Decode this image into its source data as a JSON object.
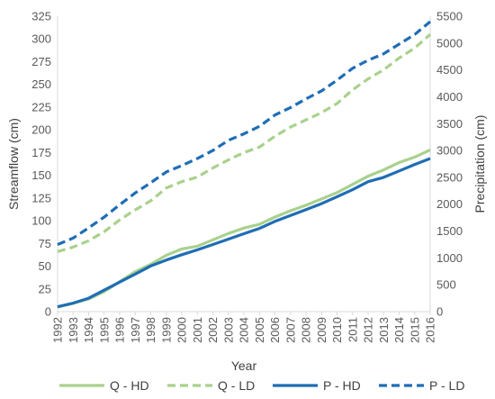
{
  "chart_data": {
    "type": "line",
    "title": "",
    "xlabel": "Year",
    "ylabel": "Streamflow (cm)",
    "y2label": "Precipitation (cm)",
    "ylim": [
      0,
      325
    ],
    "y2lim": [
      0,
      5500
    ],
    "yticks": [
      "0",
      "25",
      "50",
      "75",
      "100",
      "125",
      "150",
      "175",
      "200",
      "225",
      "250",
      "275",
      "300",
      "325"
    ],
    "y2ticks": [
      "0",
      "500",
      "1000",
      "1500",
      "2000",
      "2500",
      "3000",
      "3500",
      "4000",
      "4500",
      "5000",
      "5500"
    ],
    "x": [
      "1992",
      "1993",
      "1994",
      "1995",
      "1996",
      "1997",
      "1998",
      "1999",
      "2000",
      "2001",
      "2002",
      "2003",
      "2004",
      "2005",
      "2006",
      "2007",
      "2008",
      "2009",
      "2010",
      "2011",
      "2012",
      "2013",
      "2014",
      "2015",
      "2016"
    ],
    "grid": false,
    "legend_position": "bottom",
    "series": [
      {
        "name": "Q - HD",
        "axis": "left",
        "color": "#a9d18e",
        "dash": false,
        "values": [
          5,
          9,
          14,
          22,
          33,
          44,
          52,
          62,
          69,
          72,
          79,
          86,
          92,
          96,
          104,
          111,
          117,
          124,
          131,
          140,
          149,
          156,
          164,
          170,
          178
        ]
      },
      {
        "name": "Q - LD",
        "axis": "left",
        "color": "#a9d18e",
        "dash": true,
        "values": [
          66,
          71,
          78,
          88,
          101,
          112,
          122,
          136,
          143,
          148,
          158,
          167,
          175,
          181,
          193,
          203,
          211,
          219,
          229,
          244,
          256,
          266,
          279,
          290,
          305
        ]
      },
      {
        "name": "P - HD",
        "axis": "right",
        "color": "#1f6db5",
        "dash": false,
        "values": [
          90,
          160,
          250,
          400,
          550,
          700,
          850,
          960,
          1060,
          1150,
          1250,
          1350,
          1450,
          1550,
          1680,
          1790,
          1900,
          2010,
          2140,
          2270,
          2420,
          2500,
          2620,
          2740,
          2850
        ]
      },
      {
        "name": "P - LD",
        "axis": "right",
        "color": "#1f6db5",
        "dash": true,
        "values": [
          1250,
          1370,
          1560,
          1760,
          1990,
          2210,
          2400,
          2600,
          2720,
          2850,
          3000,
          3190,
          3310,
          3450,
          3660,
          3800,
          3960,
          4110,
          4310,
          4530,
          4680,
          4800,
          4980,
          5160,
          5400
        ]
      }
    ]
  }
}
